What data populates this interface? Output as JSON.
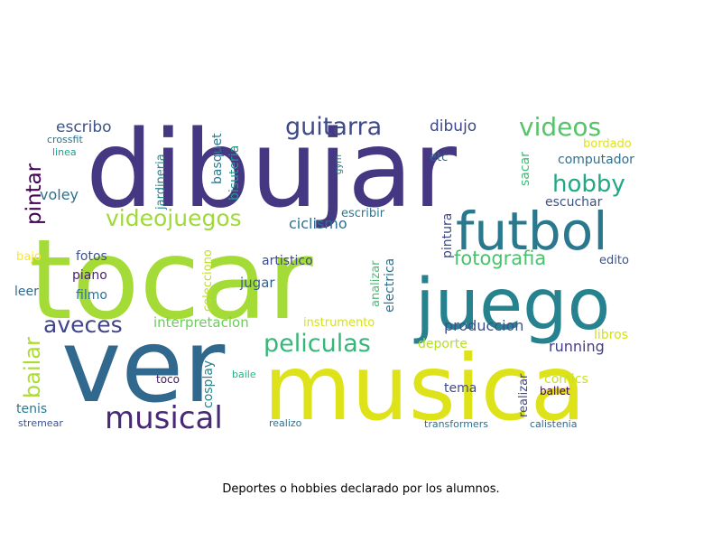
{
  "caption": "Deportes o hobbies declarado por los alumnos.",
  "words": [
    {
      "id": "dibujar",
      "text": "dibujar",
      "color": "#453781"
    },
    {
      "id": "tocar",
      "text": "tocar",
      "color": "#a5db36"
    },
    {
      "id": "ver",
      "text": "ver",
      "color": "#31688e"
    },
    {
      "id": "musica",
      "text": "musica",
      "color": "#dde318"
    },
    {
      "id": "juego",
      "text": "juego",
      "color": "#26828e"
    },
    {
      "id": "futbol",
      "text": "futbol",
      "color": "#2a788e"
    },
    {
      "id": "musical",
      "text": "musical",
      "color": "#482878"
    },
    {
      "id": "peliculas",
      "text": "peliculas",
      "color": "#35b779"
    },
    {
      "id": "videojuegos",
      "text": "videojuegos",
      "color": "#a0da39"
    },
    {
      "id": "videos",
      "text": "videos",
      "color": "#54c568"
    },
    {
      "id": "guitarra",
      "text": "guitarra",
      "color": "#3e4a89"
    },
    {
      "id": "hobby",
      "text": "hobby",
      "color": "#22a884"
    },
    {
      "id": "aveces",
      "text": "aveces",
      "color": "#414487"
    },
    {
      "id": "bailar",
      "text": "bailar",
      "color": "#addc30"
    },
    {
      "id": "pintar",
      "text": "pintar",
      "color": "#440154"
    },
    {
      "id": "fotografia",
      "text": "fotografia",
      "color": "#4ac16d"
    },
    {
      "id": "escribo",
      "text": "escribo",
      "color": "#3b528b"
    },
    {
      "id": "dibujo",
      "text": "dibujo",
      "color": "#3f4788"
    },
    {
      "id": "voley",
      "text": "voley",
      "color": "#2c728e"
    },
    {
      "id": "ciclismo",
      "text": "ciclismo",
      "color": "#2d708e"
    },
    {
      "id": "interpretacion",
      "text": "interpretacion",
      "color": "#6ccd5a"
    },
    {
      "id": "produccion",
      "text": "produccion",
      "color": "#3b528b"
    },
    {
      "id": "running",
      "text": "running",
      "color": "#433e85"
    },
    {
      "id": "crossfit",
      "text": "crossfit",
      "color": "#2c728e"
    },
    {
      "id": "linea",
      "text": "linea",
      "color": "#1f9e89"
    },
    {
      "id": "jardineria",
      "text": "jardineria",
      "color": "#25848e"
    },
    {
      "id": "basquet",
      "text": "basquet",
      "color": "#2a788e"
    },
    {
      "id": "bisuteria",
      "text": "bisuteria",
      "color": "#1f9a8a"
    },
    {
      "id": "gym",
      "text": "gym",
      "color": "#287c8e"
    },
    {
      "id": "etc",
      "text": "etc",
      "color": "#31688e"
    },
    {
      "id": "bordado",
      "text": "bordado",
      "color": "#dfe318"
    },
    {
      "id": "computador",
      "text": "computador",
      "color": "#2d708e"
    },
    {
      "id": "sacar",
      "text": "sacar",
      "color": "#3bbb75"
    },
    {
      "id": "escuchar",
      "text": "escuchar",
      "color": "#3b528b"
    },
    {
      "id": "escribir",
      "text": "escribir",
      "color": "#2a788e"
    },
    {
      "id": "pintura",
      "text": "pintura",
      "color": "#3e4a89"
    },
    {
      "id": "bajo",
      "text": "bajo",
      "color": "#fde725"
    },
    {
      "id": "fotos",
      "text": "fotos",
      "color": "#3b528b"
    },
    {
      "id": "piano",
      "text": "piano",
      "color": "#482475"
    },
    {
      "id": "leer",
      "text": "leer",
      "color": "#31688e"
    },
    {
      "id": "filmo",
      "text": "filmo",
      "color": "#2c728e"
    },
    {
      "id": "colecciono",
      "text": "colecciono",
      "color": "#c0df25"
    },
    {
      "id": "artistico",
      "text": "artistico",
      "color": "#3e4a89"
    },
    {
      "id": "jugar",
      "text": "jugar",
      "color": "#355f8d"
    },
    {
      "id": "analizar",
      "text": "analizar",
      "color": "#44bf70"
    },
    {
      "id": "electrica",
      "text": "electrica",
      "color": "#2c728e"
    },
    {
      "id": "edito",
      "text": "edito",
      "color": "#3b528b"
    },
    {
      "id": "instrumento",
      "text": "instrumento",
      "color": "#d5e21a"
    },
    {
      "id": "libros",
      "text": "libros",
      "color": "#d2e21b"
    },
    {
      "id": "deporte",
      "text": "deporte",
      "color": "#b5de2b"
    },
    {
      "id": "cosplay",
      "text": "cosplay",
      "color": "#25858e"
    },
    {
      "id": "toco",
      "text": "toco",
      "color": "#48186a"
    },
    {
      "id": "baile",
      "text": "baile",
      "color": "#2ab07f"
    },
    {
      "id": "tenis",
      "text": "tenis",
      "color": "#2a788e"
    },
    {
      "id": "stremear",
      "text": "stremear",
      "color": "#3b528b"
    },
    {
      "id": "realizo",
      "text": "realizo",
      "color": "#2c728e"
    },
    {
      "id": "tema",
      "text": "tema",
      "color": "#3e4a89"
    },
    {
      "id": "realizar",
      "text": "realizar",
      "color": "#404688"
    },
    {
      "id": "comics",
      "text": "comics",
      "color": "#c8e020"
    },
    {
      "id": "ballet",
      "text": "ballet",
      "color": "#440154"
    },
    {
      "id": "transformers",
      "text": "transformers",
      "color": "#2d708e"
    },
    {
      "id": "calistenia",
      "text": "calistenia",
      "color": "#31688e"
    }
  ]
}
